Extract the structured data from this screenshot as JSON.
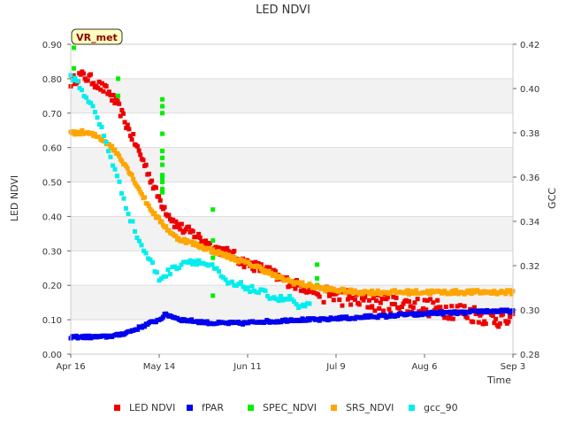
{
  "chart_data": {
    "type": "scatter",
    "title": "LED NDVI",
    "xlabel": "Time",
    "ylabel": "LED NDVI",
    "y2label": "GCC",
    "badge": "VR_met",
    "xlim": [
      0,
      140
    ],
    "ylim": [
      0,
      0.9
    ],
    "y2lim": [
      0.28,
      0.42
    ],
    "x_ticks": [
      {
        "day": 0,
        "label": "Apr 16"
      },
      {
        "day": 28,
        "label": "May 14"
      },
      {
        "day": 56,
        "label": "Jun 11"
      },
      {
        "day": 84,
        "label": "Jul 9"
      },
      {
        "day": 112,
        "label": "Aug 6"
      },
      {
        "day": 140,
        "label": "Sep 3"
      }
    ],
    "y_ticks": [
      "0.00",
      "0.10",
      "0.20",
      "0.30",
      "0.40",
      "0.50",
      "0.60",
      "0.70",
      "0.80",
      "0.90"
    ],
    "y_tick_values": [
      0,
      0.1,
      0.2,
      0.3,
      0.4,
      0.5,
      0.6,
      0.7,
      0.8,
      0.9
    ],
    "y2_ticks": [
      "0.28",
      "0.30",
      "0.32",
      "0.34",
      "0.36",
      "0.38",
      "0.40",
      "0.42"
    ],
    "y2_tick_values": [
      0.28,
      0.3,
      0.32,
      0.34,
      0.36,
      0.38,
      0.4,
      0.42
    ],
    "series": [
      {
        "name": "LED NDVI",
        "color": "#ee0000",
        "axis": "left",
        "noise": 0.015,
        "x": [
          0,
          3,
          6,
          9,
          12,
          15,
          18,
          21,
          24,
          27,
          30,
          33,
          36,
          39,
          42,
          45,
          48,
          51,
          54,
          57,
          60,
          63,
          66,
          69,
          72,
          75,
          78,
          81,
          84,
          87,
          90,
          93,
          96,
          99,
          102,
          105,
          108,
          111,
          114,
          117,
          120,
          123,
          126,
          129,
          132,
          135,
          138,
          140
        ],
        "y": [
          0.79,
          0.81,
          0.8,
          0.78,
          0.76,
          0.72,
          0.66,
          0.6,
          0.54,
          0.47,
          0.42,
          0.38,
          0.36,
          0.35,
          0.33,
          0.31,
          0.3,
          0.29,
          0.27,
          0.26,
          0.25,
          0.24,
          0.22,
          0.21,
          0.2,
          0.19,
          0.18,
          0.175,
          0.17,
          0.165,
          0.16,
          0.155,
          0.15,
          0.15,
          0.145,
          0.145,
          0.14,
          0.14,
          0.135,
          0.13,
          0.13,
          0.125,
          0.12,
          0.115,
          0.11,
          0.105,
          0.1,
          0.09
        ]
      },
      {
        "name": "fPAR",
        "color": "#0000ee",
        "axis": "left",
        "noise": 0.004,
        "x": [
          0,
          5,
          10,
          15,
          20,
          25,
          28,
          30,
          32,
          35,
          40,
          45,
          50,
          55,
          60,
          65,
          70,
          75,
          80,
          85,
          90,
          95,
          100,
          105,
          110,
          115,
          120,
          125,
          130,
          135,
          140
        ],
        "y": [
          0.05,
          0.05,
          0.05,
          0.055,
          0.07,
          0.09,
          0.1,
          0.115,
          0.11,
          0.1,
          0.095,
          0.09,
          0.09,
          0.09,
          0.095,
          0.095,
          0.1,
          0.1,
          0.1,
          0.105,
          0.105,
          0.11,
          0.11,
          0.115,
          0.115,
          0.12,
          0.12,
          0.12,
          0.125,
          0.125,
          0.125
        ]
      },
      {
        "name": "SPEC_NDVI",
        "color": "#00ee00",
        "axis": "left",
        "noise": 0,
        "x": [
          1,
          1,
          15,
          15,
          29,
          29,
          29,
          29,
          29,
          29,
          29,
          29,
          29,
          29,
          29,
          29,
          45,
          45,
          45,
          45,
          78,
          78,
          78
        ],
        "y": [
          0.89,
          0.83,
          0.8,
          0.75,
          0.74,
          0.72,
          0.7,
          0.64,
          0.59,
          0.57,
          0.55,
          0.52,
          0.51,
          0.5,
          0.48,
          0.47,
          0.42,
          0.33,
          0.17,
          0.28,
          0.26,
          0.22,
          0.2
        ]
      },
      {
        "name": "SRS_NDVI",
        "color": "#ffa500",
        "axis": "left",
        "noise": 0.006,
        "x": [
          0,
          3,
          6,
          9,
          12,
          15,
          18,
          21,
          24,
          27,
          30,
          33,
          36,
          39,
          42,
          45,
          48,
          51,
          54,
          57,
          60,
          65,
          70,
          75,
          80,
          85,
          90,
          95,
          100,
          105,
          110,
          115,
          120,
          125,
          130,
          135,
          140
        ],
        "y": [
          0.64,
          0.645,
          0.64,
          0.63,
          0.61,
          0.58,
          0.54,
          0.49,
          0.44,
          0.4,
          0.37,
          0.34,
          0.33,
          0.32,
          0.31,
          0.3,
          0.29,
          0.28,
          0.27,
          0.26,
          0.25,
          0.225,
          0.21,
          0.2,
          0.19,
          0.185,
          0.18,
          0.18,
          0.18,
          0.18,
          0.18,
          0.18,
          0.18,
          0.18,
          0.18,
          0.18,
          0.18
        ]
      },
      {
        "name": "gcc_90",
        "color": "#00eeee",
        "axis": "right",
        "noise": 0.0015,
        "x": [
          0,
          2,
          4,
          6,
          8,
          10,
          12,
          14,
          16,
          18,
          20,
          22,
          24,
          26,
          28,
          30,
          32,
          34,
          36,
          38,
          40,
          42,
          44,
          46,
          48,
          50,
          52,
          54,
          56,
          58,
          60,
          62,
          64,
          66,
          68,
          70,
          72,
          74,
          76
        ],
        "y": [
          0.406,
          0.403,
          0.398,
          0.394,
          0.388,
          0.381,
          0.372,
          0.363,
          0.354,
          0.345,
          0.337,
          0.33,
          0.325,
          0.32,
          0.314,
          0.316,
          0.318,
          0.32,
          0.322,
          0.322,
          0.322,
          0.321,
          0.32,
          0.318,
          0.314,
          0.312,
          0.311,
          0.311,
          0.31,
          0.309,
          0.308,
          0.307,
          0.306,
          0.305,
          0.305,
          0.305,
          0.301,
          0.301,
          0.302
        ]
      }
    ]
  }
}
